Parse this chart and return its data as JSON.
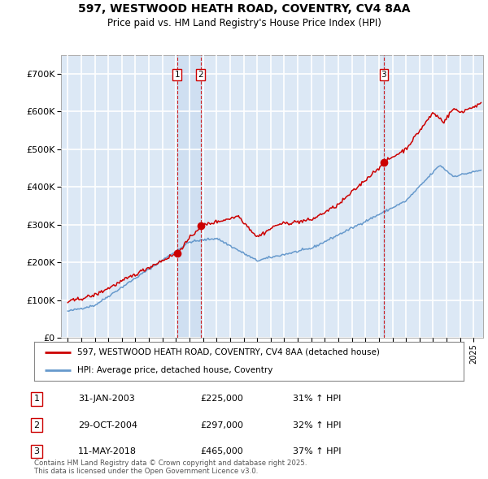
{
  "title_line1": "597, WESTWOOD HEATH ROAD, COVENTRY, CV4 8AA",
  "title_line2": "Price paid vs. HM Land Registry's House Price Index (HPI)",
  "background_color": "#ffffff",
  "plot_bg": "#dce8f5",
  "grid_color": "#ffffff",
  "legend_label_red": "597, WESTWOOD HEATH ROAD, COVENTRY, CV4 8AA (detached house)",
  "legend_label_blue": "HPI: Average price, detached house, Coventry",
  "transactions": [
    {
      "num": 1,
      "date": "31-JAN-2003",
      "price": "£225,000",
      "hpi": "31% ↑ HPI",
      "year": 2003.08,
      "value": 225000
    },
    {
      "num": 2,
      "date": "29-OCT-2004",
      "price": "£297,000",
      "hpi": "32% ↑ HPI",
      "year": 2004.83,
      "value": 297000
    },
    {
      "num": 3,
      "date": "11-MAY-2018",
      "price": "£465,000",
      "hpi": "37% ↑ HPI",
      "year": 2018.36,
      "value": 465000
    }
  ],
  "footer": "Contains HM Land Registry data © Crown copyright and database right 2025.\nThis data is licensed under the Open Government Licence v3.0.",
  "yticks": [
    0,
    100000,
    200000,
    300000,
    400000,
    500000,
    600000,
    700000
  ],
  "ytick_labels": [
    "£0",
    "£100K",
    "£200K",
    "£300K",
    "£400K",
    "£500K",
    "£600K",
    "£700K"
  ],
  "xmin": 1994.5,
  "xmax": 2025.7,
  "ymin": 0,
  "ymax": 750000,
  "red_color": "#cc0000",
  "blue_color": "#6699cc",
  "highlight_color": "#ccddf0"
}
